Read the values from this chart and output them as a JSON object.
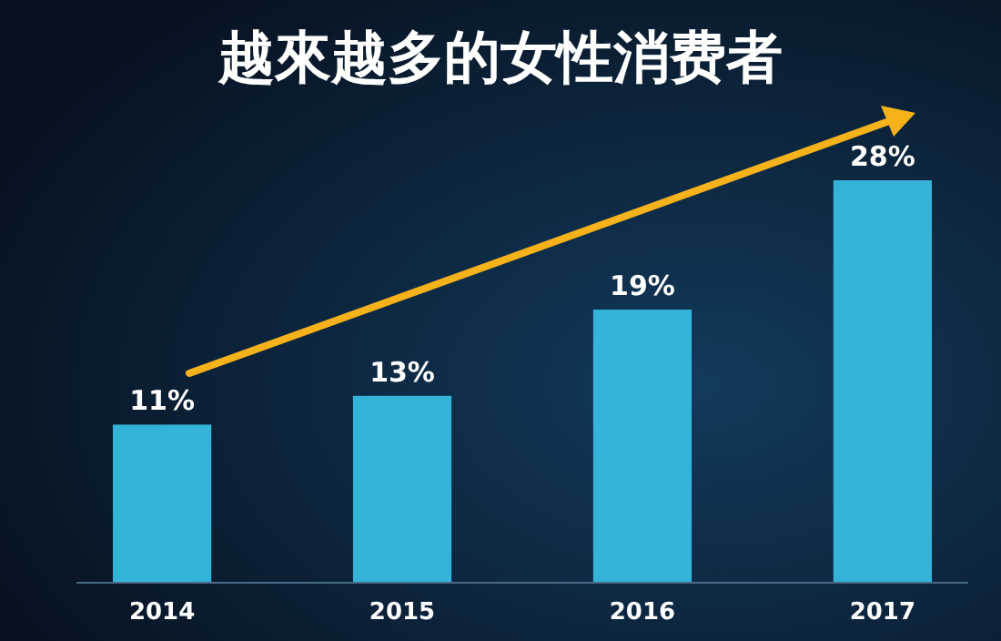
{
  "chart_data": {
    "type": "bar",
    "title": "越來越多的女性消费者",
    "categories": [
      "2014",
      "2015",
      "2016",
      "2017"
    ],
    "values": [
      11,
      13,
      19,
      28
    ],
    "value_labels": [
      "11%",
      "13%",
      "19%",
      "28%"
    ],
    "color": "#35b4da"
  }
}
